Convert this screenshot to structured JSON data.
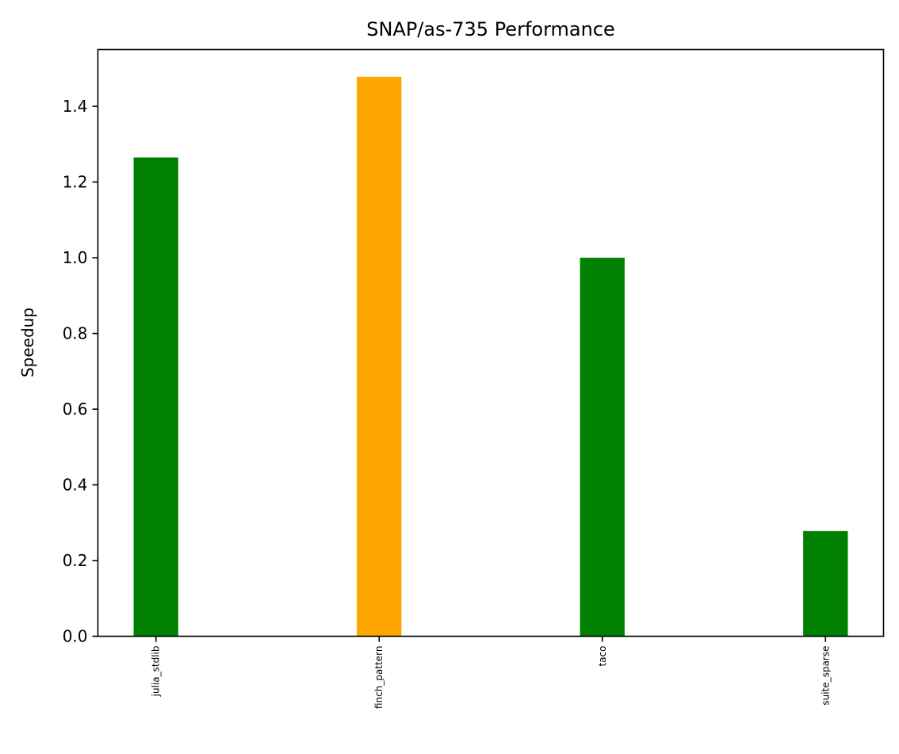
{
  "chart_data": {
    "type": "bar",
    "title": "SNAP/as-735 Performance",
    "xlabel": "",
    "ylabel": "Speedup",
    "categories": [
      "julia_stdlib",
      "finch_pattern",
      "taco",
      "suite_sparse"
    ],
    "values": [
      1.265,
      1.478,
      1.0,
      0.278
    ],
    "bar_colors": [
      "#008000",
      "#FFA500",
      "#008000",
      "#008000"
    ],
    "ylim": [
      0,
      1.55
    ],
    "yticks": [
      0.0,
      0.2,
      0.4,
      0.6,
      0.8,
      1.0,
      1.2,
      1.4
    ],
    "ytick_labels": [
      "0.0",
      "0.2",
      "0.4",
      "0.6",
      "0.8",
      "1.0",
      "1.2",
      "1.4"
    ],
    "grid": false,
    "legend": "none"
  }
}
